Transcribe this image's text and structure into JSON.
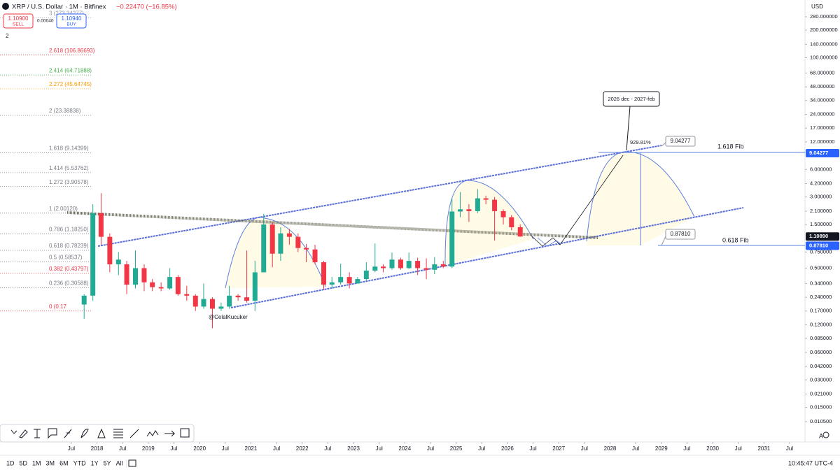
{
  "header": {
    "symbol": "XRP / U.S. Dollar · 1M · Bitfinex",
    "change": "−0.22470 (−16.85%)",
    "sell_price": "1.10900",
    "sell_label": "SELL",
    "spread": "0.00040",
    "buy_price": "1.10940",
    "buy_label": "BUY",
    "indicators": "2",
    "currency": "USD"
  },
  "chart_data": {
    "type": "candlestick",
    "log_y": true,
    "title": "XRP / U.S. Dollar · 1M · Bitfinex",
    "xlim": [
      2016.11,
      2031.8
    ],
    "ylim": [
      0.00652,
      427
    ],
    "xticks": [
      {
        "value": 2017.5,
        "label": "Jul"
      },
      2018,
      {
        "value": 2018.5,
        "label": "Jul"
      },
      2019,
      {
        "value": 2019.5,
        "label": "Jul"
      },
      2020,
      {
        "value": 2020.5,
        "label": "Jul"
      },
      2021,
      {
        "value": 2021.5,
        "label": "Jul"
      },
      2022,
      {
        "value": 2022.5,
        "label": "Jul"
      },
      2023,
      {
        "value": 2023.5,
        "label": "Jul"
      },
      2024,
      {
        "value": 2024.5,
        "label": "Jul"
      },
      2025,
      {
        "value": 2025.5,
        "label": "Jul"
      },
      2026,
      {
        "value": 2026.5,
        "label": "Jul"
      },
      2027,
      {
        "value": 2027.5,
        "label": "Jul"
      },
      2028,
      {
        "value": 2028.5,
        "label": "Jul"
      },
      2029,
      {
        "value": 2029.5,
        "label": "Jul"
      },
      2030,
      {
        "value": 2030.5,
        "label": "Jul"
      },
      2031,
      {
        "value": 2031.5,
        "label": "Jul"
      }
    ],
    "yticks": [
      {
        "value": 280,
        "label": "280.000000"
      },
      {
        "value": 200,
        "label": "200.000000"
      },
      {
        "value": 140,
        "label": "140.000000"
      },
      {
        "value": 100,
        "label": "100.000000"
      },
      {
        "value": 68,
        "label": "68.000000"
      },
      {
        "value": 48,
        "label": "48.000000"
      },
      {
        "value": 34,
        "label": "34.000000"
      },
      {
        "value": 24,
        "label": "24.000000"
      },
      {
        "value": 17,
        "label": "17.000000"
      },
      {
        "value": 12,
        "label": "12.000000"
      },
      {
        "value": 6,
        "label": "6.000000"
      },
      {
        "value": 4.2,
        "label": "4.200000"
      },
      {
        "value": 3,
        "label": "3.000000"
      },
      {
        "value": 2.1,
        "label": "2.100000"
      },
      {
        "value": 1.5,
        "label": "1.500000"
      },
      {
        "value": 0.75,
        "label": "0.750000"
      },
      {
        "value": 0.5,
        "label": "0.500000"
      },
      {
        "value": 0.34,
        "label": "0.340000"
      },
      {
        "value": 0.24,
        "label": "0.240000"
      },
      {
        "value": 0.17,
        "label": "0.170000"
      },
      {
        "value": 0.12,
        "label": "0.120000"
      },
      {
        "value": 0.085,
        "label": "0.085000"
      },
      {
        "value": 0.06,
        "label": "0.060000"
      },
      {
        "value": 0.042,
        "label": "0.042000"
      },
      {
        "value": 0.03,
        "label": "0.030000"
      },
      {
        "value": 0.021,
        "label": "0.021000"
      },
      {
        "value": 0.015,
        "label": "0.015000"
      },
      {
        "value": 0.0105,
        "label": "0.010500"
      }
    ],
    "up_color": "#22ab94",
    "down_color": "#f23645",
    "candles": {
      "t": [
        2017.75,
        2017.92,
        2018.08,
        2018.25,
        2018.42,
        2018.58,
        2018.75,
        2018.92,
        2019.08,
        2019.25,
        2019.42,
        2019.58,
        2019.75,
        2019.92,
        2020.08,
        2020.25,
        2020.42,
        2020.58,
        2020.75,
        2020.92,
        2021.08,
        2021.25,
        2021.42,
        2021.58,
        2021.75,
        2021.92,
        2022.08,
        2022.25,
        2022.42,
        2022.58,
        2022.75,
        2022.92,
        2023.08,
        2023.25,
        2023.42,
        2023.58,
        2023.75,
        2023.92,
        2024.08,
        2024.25,
        2024.42,
        2024.58,
        2024.75,
        2024.92,
        2025.08,
        2025.25,
        2025.42,
        2025.58,
        2025.75,
        2025.92,
        2026.08,
        2026.25
      ],
      "open": [
        0.2,
        0.25,
        2.0,
        1.1,
        0.55,
        0.55,
        0.33,
        0.5,
        0.35,
        0.31,
        0.3,
        0.4,
        0.26,
        0.25,
        0.19,
        0.23,
        0.18,
        0.19,
        0.25,
        0.24,
        0.22,
        0.45,
        1.5,
        0.72,
        1.2,
        1.1,
        0.83,
        0.8,
        0.58,
        0.33,
        0.35,
        0.4,
        0.34,
        0.38,
        0.47,
        0.52,
        0.5,
        0.62,
        0.5,
        0.6,
        0.5,
        0.48,
        0.55,
        0.52,
        2.08,
        2.2,
        2.1,
        2.9,
        2.8,
        2.1,
        1.8,
        1.4
      ],
      "high": [
        0.26,
        2.5,
        3.3,
        1.2,
        0.75,
        0.6,
        0.78,
        0.55,
        0.38,
        0.35,
        0.5,
        0.42,
        0.32,
        0.26,
        0.34,
        0.24,
        0.21,
        0.32,
        0.26,
        0.78,
        0.6,
        1.96,
        1.6,
        1.4,
        1.35,
        1.2,
        0.92,
        0.9,
        0.6,
        0.4,
        0.56,
        0.45,
        0.4,
        0.58,
        0.93,
        0.55,
        0.74,
        0.65,
        0.74,
        0.65,
        0.64,
        0.66,
        0.6,
        2.9,
        3.4,
        2.5,
        3.66,
        3.1,
        3.0,
        2.2,
        1.9,
        1.5
      ],
      "low": [
        0.14,
        0.22,
        0.9,
        0.45,
        0.42,
        0.26,
        0.3,
        0.28,
        0.28,
        0.28,
        0.29,
        0.25,
        0.22,
        0.17,
        0.18,
        0.11,
        0.17,
        0.18,
        0.22,
        0.21,
        0.17,
        0.45,
        0.51,
        0.6,
        0.9,
        0.75,
        0.58,
        0.55,
        0.29,
        0.3,
        0.33,
        0.3,
        0.34,
        0.36,
        0.45,
        0.45,
        0.48,
        0.48,
        0.49,
        0.42,
        0.38,
        0.43,
        0.5,
        0.5,
        1.8,
        1.6,
        2.0,
        2.5,
        1.0,
        1.5,
        1.3,
        1.1
      ],
      "close": [
        0.25,
        2.0,
        1.1,
        0.55,
        0.62,
        0.33,
        0.5,
        0.35,
        0.31,
        0.3,
        0.4,
        0.26,
        0.25,
        0.19,
        0.23,
        0.18,
        0.19,
        0.25,
        0.24,
        0.22,
        0.45,
        1.5,
        0.72,
        1.2,
        1.1,
        0.83,
        0.8,
        0.58,
        0.33,
        0.35,
        0.4,
        0.34,
        0.38,
        0.47,
        0.52,
        0.5,
        0.62,
        0.5,
        0.6,
        0.5,
        0.48,
        0.55,
        0.52,
        2.08,
        2.2,
        2.1,
        2.9,
        2.8,
        2.1,
        1.8,
        1.4,
        1.109
      ]
    },
    "fib_levels": [
      {
        "label": "3 (273.34277)",
        "value": 273.34277,
        "color": "#9598a1"
      },
      {
        "label": "2.618 (106.86693)",
        "value": 106.86693,
        "color": "#f23645"
      },
      {
        "label": "2.414 (64.71888)",
        "value": 64.71888,
        "color": "#4caf50"
      },
      {
        "label": "2.272 (45.64745)",
        "value": 45.64745,
        "color": "#ff9800"
      },
      {
        "label": "2 (23.38838)",
        "value": 23.38838,
        "color": "#787b86"
      },
      {
        "label": "1.618 (9.14399)",
        "value": 9.14399,
        "color": "#787b86"
      },
      {
        "label": "1.414 (5.53762)",
        "value": 5.53762,
        "color": "#787b86"
      },
      {
        "label": "1.272 (3.90578)",
        "value": 3.90578,
        "color": "#787b86"
      },
      {
        "label": "1 (2.00120)",
        "value": 2.0012,
        "color": "#787b86"
      },
      {
        "label": "0.786 (1.18250)",
        "value": 1.1825,
        "color": "#787b86"
      },
      {
        "label": "0.618 (0.78239)",
        "value": 0.78239,
        "color": "#787b86"
      },
      {
        "label": "0.5 (0.58537)",
        "value": 0.58537,
        "color": "#787b86"
      },
      {
        "label": "0.382 (0.43797)",
        "value": 0.43797,
        "color": "#f23645"
      },
      {
        "label": "0.236 (0.30588)",
        "value": 0.30588,
        "color": "#787b86"
      },
      {
        "label": "0 (0.17",
        "value": 0.17,
        "color": "#f23645"
      }
    ],
    "price_tags": [
      {
        "value": 9.04277,
        "label": "9.04277",
        "color": "#2962ff"
      },
      {
        "value": 1.1089,
        "label": "1.10890",
        "color": "#131722"
      },
      {
        "value": 0.8781,
        "label": "0.87810",
        "color": "#2962ff"
      }
    ],
    "annotations": {
      "callout": "2026 dec - 2027-feb",
      "percent": "929.81%",
      "target_box": "9.04277",
      "target_label": "1.618 Fib",
      "low_box": "0.87810",
      "low_label": "0.618 Fib",
      "author": "@CelalKucuker"
    }
  },
  "timeframes": [
    "1D",
    "5D",
    "1M",
    "3M",
    "6M",
    "YTD",
    "1Y",
    "5Y",
    "All"
  ],
  "clock": "10:45:47 UTC-4"
}
